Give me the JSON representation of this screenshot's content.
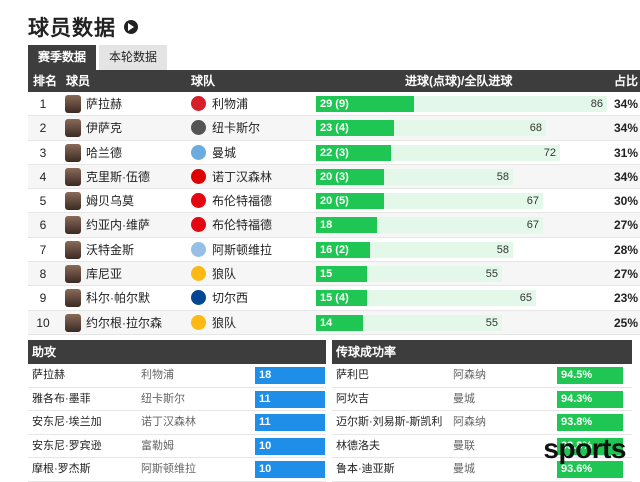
{
  "page": {
    "title": "球员数据"
  },
  "tabs": [
    {
      "label": "赛季数据",
      "active": true
    },
    {
      "label": "本轮数据",
      "active": false
    }
  ],
  "table": {
    "columns": {
      "rank": "排名",
      "player": "球员",
      "team": "球队",
      "goals": "进球(点球)/全队进球",
      "share": "占比"
    },
    "rows": [
      {
        "rank": "1",
        "player": "萨拉赫",
        "team": "利物浦",
        "team_color": "#d81e2a",
        "goals": "29 (9)",
        "goal_value": 29,
        "team_total": "86",
        "team_total_value": 86,
        "share": "34%"
      },
      {
        "rank": "2",
        "player": "伊萨克",
        "team": "纽卡斯尔",
        "team_color": "#555555",
        "goals": "23 (4)",
        "goal_value": 23,
        "team_total": "68",
        "team_total_value": 68,
        "share": "34%"
      },
      {
        "rank": "3",
        "player": "哈兰德",
        "team": "曼城",
        "team_color": "#6cabdd",
        "goals": "22 (3)",
        "goal_value": 22,
        "team_total": "72",
        "team_total_value": 72,
        "share": "31%"
      },
      {
        "rank": "4",
        "player": "克里斯·伍德",
        "team": "诺丁汉森林",
        "team_color": "#dd0000",
        "goals": "20 (3)",
        "goal_value": 20,
        "team_total": "58",
        "team_total_value": 58,
        "share": "34%"
      },
      {
        "rank": "5",
        "player": "姆贝乌莫",
        "team": "布伦特福德",
        "team_color": "#e30613",
        "goals": "20 (5)",
        "goal_value": 20,
        "team_total": "67",
        "team_total_value": 67,
        "share": "30%"
      },
      {
        "rank": "6",
        "player": "约亚内·维萨",
        "team": "布伦特福德",
        "team_color": "#e30613",
        "goals": "18",
        "goal_value": 18,
        "team_total": "67",
        "team_total_value": 67,
        "share": "27%"
      },
      {
        "rank": "7",
        "player": "沃特金斯",
        "team": "阿斯顿维拉",
        "team_color": "#95bfe5",
        "goals": "16 (2)",
        "goal_value": 16,
        "team_total": "58",
        "team_total_value": 58,
        "share": "28%"
      },
      {
        "rank": "8",
        "player": "库尼亚",
        "team": "狼队",
        "team_color": "#fdb913",
        "goals": "15",
        "goal_value": 15,
        "team_total": "55",
        "team_total_value": 55,
        "share": "27%"
      },
      {
        "rank": "9",
        "player": "科尔·帕尔默",
        "team": "切尔西",
        "team_color": "#034694",
        "goals": "15 (4)",
        "goal_value": 15,
        "team_total": "65",
        "team_total_value": 65,
        "share": "23%"
      },
      {
        "rank": "10",
        "player": "约尔根·拉尔森",
        "team": "狼队",
        "team_color": "#fdb913",
        "goals": "14",
        "goal_value": 14,
        "team_total": "55",
        "team_total_value": 55,
        "share": "25%"
      }
    ]
  },
  "assists": {
    "title": "助攻",
    "rows": [
      {
        "player": "萨拉赫",
        "team": "利物浦",
        "value": "18"
      },
      {
        "player": "雅各布·墨菲",
        "team": "纽卡斯尔",
        "value": "11"
      },
      {
        "player": "安东尼·埃兰加",
        "team": "诺丁汉森林",
        "value": "11"
      },
      {
        "player": "安东尼·罗宾逊",
        "team": "富勒姆",
        "value": "10"
      },
      {
        "player": "摩根·罗杰斯",
        "team": "阿斯顿维拉",
        "value": "10"
      }
    ]
  },
  "passing": {
    "title": "传球成功率",
    "rows": [
      {
        "player": "萨利巴",
        "team": "阿森纳",
        "value": "94.5%"
      },
      {
        "player": "阿坎吉",
        "team": "曼城",
        "value": "94.3%"
      },
      {
        "player": "迈尔斯·刘易斯-斯凯利",
        "team": "阿森纳",
        "value": "93.8%"
      },
      {
        "player": "林德洛夫",
        "team": "曼联",
        "value": "93.8%"
      },
      {
        "player": "鲁本·迪亚斯",
        "team": "曼城",
        "value": "93.6%"
      }
    ]
  },
  "colors": {
    "goals_bar": "#1fc653",
    "total_bar": "#e3f8e8",
    "assist_box": "#1e8ee8",
    "header_bg": "#3d3d3d"
  },
  "watermark": "sports"
}
